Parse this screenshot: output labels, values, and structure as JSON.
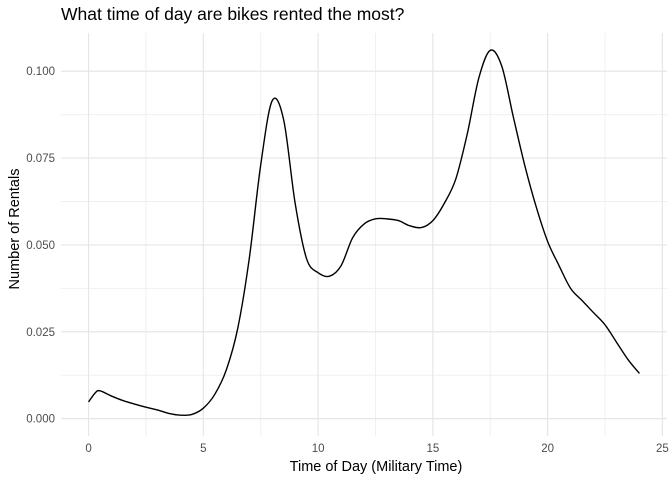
{
  "chart_data": {
    "type": "line",
    "title": "What time of day are bikes rented the most?",
    "xlabel": "Time of Day (Military Time)",
    "ylabel": "Number of Rentals",
    "xlim": [
      -1.2,
      25.2
    ],
    "ylim": [
      -0.005,
      0.111
    ],
    "x_ticks": [
      0,
      5,
      10,
      15,
      20,
      25
    ],
    "x_tick_labels": [
      "0",
      "5",
      "10",
      "15",
      "20",
      "25"
    ],
    "y_ticks": [
      0.0,
      0.025,
      0.05,
      0.075,
      0.1
    ],
    "y_tick_labels": [
      "0.000",
      "0.025",
      "0.050",
      "0.075",
      "0.100"
    ],
    "grid": true,
    "series": [
      {
        "color": "#000000",
        "x": [
          0,
          0.3,
          0.5,
          1,
          1.5,
          2,
          2.5,
          3,
          3.5,
          4,
          4.5,
          5,
          5.5,
          6,
          6.5,
          7,
          7.5,
          8,
          8.5,
          9,
          9.5,
          10,
          10.5,
          11,
          11.5,
          12,
          12.5,
          13,
          13.5,
          14,
          14.5,
          15,
          15.5,
          16,
          16.5,
          17,
          17.5,
          18,
          18.5,
          19,
          19.5,
          20,
          20.5,
          21,
          21.5,
          22,
          22.5,
          23,
          23.5,
          24
        ],
        "y": [
          0.0048,
          0.0075,
          0.008,
          0.0065,
          0.0052,
          0.0042,
          0.0033,
          0.0025,
          0.0015,
          0.001,
          0.0012,
          0.003,
          0.007,
          0.014,
          0.026,
          0.046,
          0.073,
          0.0915,
          0.086,
          0.062,
          0.046,
          0.042,
          0.041,
          0.044,
          0.052,
          0.056,
          0.0575,
          0.0575,
          0.057,
          0.0555,
          0.055,
          0.057,
          0.062,
          0.069,
          0.082,
          0.098,
          0.106,
          0.1015,
          0.087,
          0.073,
          0.061,
          0.051,
          0.044,
          0.0375,
          0.034,
          0.0305,
          0.027,
          0.022,
          0.017,
          0.013
        ]
      }
    ]
  }
}
